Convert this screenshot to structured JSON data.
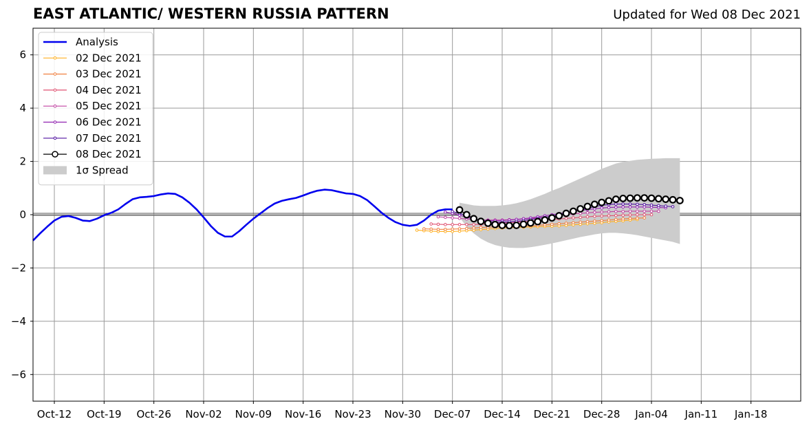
{
  "header": {
    "title": "EAST ATLANTIC/ WESTERN RUSSIA PATTERN",
    "updated": "Updated for Wed 08 Dec 2021"
  },
  "chart_data": {
    "type": "line",
    "title": "EAST ATLANTIC/ WESTERN RUSSIA PATTERN",
    "subtitle": "Updated for Wed 08 Dec 2021",
    "xlabel": "",
    "ylabel": "",
    "xlim": [
      -3,
      105
    ],
    "ylim": [
      -7,
      7
    ],
    "grid": true,
    "legend_position": "upper-left",
    "x_unit": "days since Oct-12 (2021)",
    "x_ticks": [
      {
        "x": 0,
        "label": "Oct-12"
      },
      {
        "x": 7,
        "label": "Oct-19"
      },
      {
        "x": 14,
        "label": "Oct-26"
      },
      {
        "x": 21,
        "label": "Nov-02"
      },
      {
        "x": 28,
        "label": "Nov-09"
      },
      {
        "x": 35,
        "label": "Nov-16"
      },
      {
        "x": 42,
        "label": "Nov-23"
      },
      {
        "x": 49,
        "label": "Nov-30"
      },
      {
        "x": 56,
        "label": "Dec-07"
      },
      {
        "x": 63,
        "label": "Dec-14"
      },
      {
        "x": 70,
        "label": "Dec-21"
      },
      {
        "x": 77,
        "label": "Dec-28"
      },
      {
        "x": 84,
        "label": "Jan-04"
      },
      {
        "x": 91,
        "label": "Jan-11"
      },
      {
        "x": 98,
        "label": "Jan-18"
      }
    ],
    "y_ticks": [
      {
        "y": 6,
        "label": "6"
      },
      {
        "y": 4,
        "label": "4"
      },
      {
        "y": 2,
        "label": "2"
      },
      {
        "y": 0,
        "label": "0"
      },
      {
        "y": -2,
        "label": "−2"
      },
      {
        "y": -4,
        "label": "−4"
      },
      {
        "y": -6,
        "label": "−6"
      }
    ],
    "analysis": {
      "name": "Analysis",
      "color": "#0000ee",
      "x": [
        -3,
        -2,
        -1,
        0,
        1,
        2,
        3,
        4,
        5,
        6,
        7,
        8,
        9,
        10,
        11,
        12,
        13,
        14,
        15,
        16,
        17,
        18,
        19,
        20,
        21,
        22,
        23,
        24,
        25,
        26,
        27,
        28,
        29,
        30,
        31,
        32,
        33,
        34,
        35,
        36,
        37,
        38,
        39,
        40,
        41,
        42,
        43,
        44,
        45,
        46,
        47,
        48,
        49,
        50,
        51,
        52,
        53,
        54,
        55,
        56
      ],
      "y": [
        -0.97,
        -0.7,
        -0.45,
        -0.22,
        -0.08,
        -0.05,
        -0.12,
        -0.22,
        -0.24,
        -0.15,
        -0.02,
        0.07,
        0.2,
        0.4,
        0.58,
        0.65,
        0.67,
        0.7,
        0.76,
        0.8,
        0.78,
        0.65,
        0.45,
        0.2,
        -0.1,
        -0.42,
        -0.68,
        -0.82,
        -0.82,
        -0.62,
        -0.38,
        -0.15,
        0.05,
        0.25,
        0.42,
        0.52,
        0.58,
        0.63,
        0.72,
        0.82,
        0.9,
        0.94,
        0.92,
        0.86,
        0.8,
        0.78,
        0.7,
        0.55,
        0.32,
        0.08,
        -0.12,
        -0.28,
        -0.38,
        -0.42,
        -0.38,
        -0.22,
        0,
        0.15,
        0.2,
        0.2
      ]
    },
    "spread": {
      "name": "1σ Spread",
      "color": "#cccccc",
      "x": [
        57,
        58,
        59,
        60,
        61,
        62,
        63,
        64,
        65,
        66,
        67,
        68,
        69,
        70,
        71,
        72,
        73,
        74,
        75,
        76,
        77,
        78,
        79,
        80,
        81,
        82,
        83,
        84,
        85,
        86,
        87,
        88
      ],
      "upper": [
        0.45,
        0.4,
        0.35,
        0.33,
        0.33,
        0.33,
        0.35,
        0.38,
        0.43,
        0.5,
        0.58,
        0.68,
        0.78,
        0.9,
        1.0,
        1.12,
        1.24,
        1.36,
        1.48,
        1.6,
        1.72,
        1.82,
        1.92,
        1.98,
        2.02,
        2.06,
        2.08,
        2.1,
        2.11,
        2.12,
        2.12,
        2.12
      ],
      "lower": [
        -0.1,
        -0.45,
        -0.7,
        -0.9,
        -1.04,
        -1.14,
        -1.2,
        -1.24,
        -1.25,
        -1.25,
        -1.22,
        -1.18,
        -1.13,
        -1.08,
        -1.02,
        -0.96,
        -0.9,
        -0.84,
        -0.79,
        -0.74,
        -0.7,
        -0.68,
        -0.68,
        -0.7,
        -0.73,
        -0.77,
        -0.82,
        -0.87,
        -0.92,
        -0.97,
        -1.02,
        -1.1
      ]
    },
    "series": [
      {
        "name": "02 Dec 2021",
        "color": "#ffb020",
        "x": [
          51,
          52,
          53,
          54,
          55,
          56,
          57,
          58,
          59,
          60,
          61,
          62,
          63,
          64,
          65,
          66,
          67,
          68,
          69,
          70,
          71,
          72,
          73,
          74,
          75,
          76,
          77,
          78,
          79,
          80,
          81,
          82
        ],
        "y": [
          -0.58,
          -0.6,
          -0.62,
          -0.63,
          -0.63,
          -0.63,
          -0.62,
          -0.6,
          -0.58,
          -0.56,
          -0.54,
          -0.52,
          -0.5,
          -0.49,
          -0.48,
          -0.47,
          -0.46,
          -0.45,
          -0.44,
          -0.43,
          -0.42,
          -0.4,
          -0.38,
          -0.36,
          -0.34,
          -0.32,
          -0.3,
          -0.27,
          -0.25,
          -0.23,
          -0.2,
          -0.18
        ]
      },
      {
        "name": "03 Dec 2021",
        "color": "#f08040",
        "x": [
          52,
          53,
          54,
          55,
          56,
          57,
          58,
          59,
          60,
          61,
          62,
          63,
          64,
          65,
          66,
          67,
          68,
          69,
          70,
          71,
          72,
          73,
          74,
          75,
          76,
          77,
          78,
          79,
          80,
          81,
          82,
          83
        ],
        "y": [
          -0.53,
          -0.54,
          -0.55,
          -0.55,
          -0.54,
          -0.53,
          -0.52,
          -0.5,
          -0.48,
          -0.47,
          -0.46,
          -0.45,
          -0.45,
          -0.44,
          -0.43,
          -0.42,
          -0.4,
          -0.38,
          -0.36,
          -0.34,
          -0.32,
          -0.3,
          -0.28,
          -0.26,
          -0.24,
          -0.22,
          -0.2,
          -0.18,
          -0.16,
          -0.14,
          -0.13,
          -0.12
        ]
      },
      {
        "name": "04 Dec 2021",
        "color": "#e05070",
        "x": [
          53,
          54,
          55,
          56,
          57,
          58,
          59,
          60,
          61,
          62,
          63,
          64,
          65,
          66,
          67,
          68,
          69,
          70,
          71,
          72,
          73,
          74,
          75,
          76,
          77,
          78,
          79,
          80,
          81,
          82,
          83,
          84
        ],
        "y": [
          -0.35,
          -0.36,
          -0.37,
          -0.37,
          -0.37,
          -0.37,
          -0.37,
          -0.36,
          -0.35,
          -0.33,
          -0.31,
          -0.3,
          -0.28,
          -0.26,
          -0.24,
          -0.22,
          -0.2,
          -0.18,
          -0.16,
          -0.14,
          -0.12,
          -0.1,
          -0.08,
          -0.06,
          -0.05,
          -0.04,
          -0.03,
          -0.02,
          -0.01,
          0,
          0,
          0
        ]
      },
      {
        "name": "05 Dec 2021",
        "color": "#c040a0",
        "x": [
          54,
          55,
          56,
          57,
          58,
          59,
          60,
          61,
          62,
          63,
          64,
          65,
          66,
          67,
          68,
          69,
          70,
          71,
          72,
          73,
          74,
          75,
          76,
          77,
          78,
          79,
          80,
          81,
          82,
          83,
          84,
          85
        ],
        "y": [
          -0.08,
          -0.1,
          -0.12,
          -0.14,
          -0.16,
          -0.18,
          -0.2,
          -0.2,
          -0.2,
          -0.2,
          -0.19,
          -0.18,
          -0.16,
          -0.14,
          -0.12,
          -0.09,
          -0.06,
          -0.03,
          0,
          0.03,
          0.05,
          0.07,
          0.09,
          0.1,
          0.11,
          0.12,
          0.12,
          0.13,
          0.13,
          0.13,
          0.13,
          0.13
        ]
      },
      {
        "name": "06 Dec 2021",
        "color": "#9020b0",
        "x": [
          55,
          56,
          57,
          58,
          59,
          60,
          61,
          62,
          63,
          64,
          65,
          66,
          67,
          68,
          69,
          70,
          71,
          72,
          73,
          74,
          75,
          76,
          77,
          78,
          79,
          80,
          81,
          82,
          83,
          84,
          85,
          86
        ],
        "y": [
          0.1,
          0.05,
          -0.02,
          -0.1,
          -0.16,
          -0.2,
          -0.22,
          -0.22,
          -0.22,
          -0.2,
          -0.18,
          -0.15,
          -0.12,
          -0.08,
          -0.04,
          0,
          0.04,
          0.08,
          0.12,
          0.16,
          0.19,
          0.22,
          0.25,
          0.27,
          0.28,
          0.29,
          0.29,
          0.29,
          0.29,
          0.28,
          0.27,
          0.26
        ]
      },
      {
        "name": "07 Dec 2021",
        "color": "#5010a0",
        "x": [
          56,
          57,
          58,
          59,
          60,
          61,
          62,
          63,
          64,
          65,
          66,
          67,
          68,
          69,
          70,
          71,
          72,
          73,
          74,
          75,
          76,
          77,
          78,
          79,
          80,
          81,
          82,
          83,
          84,
          85,
          86,
          87
        ],
        "y": [
          0.12,
          0.05,
          -0.05,
          -0.15,
          -0.22,
          -0.26,
          -0.28,
          -0.28,
          -0.27,
          -0.25,
          -0.22,
          -0.18,
          -0.14,
          -0.1,
          -0.05,
          0,
          0.06,
          0.12,
          0.18,
          0.24,
          0.3,
          0.35,
          0.38,
          0.4,
          0.4,
          0.4,
          0.39,
          0.38,
          0.36,
          0.34,
          0.32,
          0.3
        ]
      },
      {
        "name": "08 Dec 2021",
        "color": "#000000",
        "x": [
          57,
          58,
          59,
          60,
          61,
          62,
          63,
          64,
          65,
          66,
          67,
          68,
          69,
          70,
          71,
          72,
          73,
          74,
          75,
          76,
          77,
          78,
          79,
          80,
          81,
          82,
          83,
          84,
          85,
          86,
          87,
          88
        ],
        "y": [
          0.18,
          0,
          -0.15,
          -0.25,
          -0.32,
          -0.37,
          -0.4,
          -0.41,
          -0.4,
          -0.36,
          -0.31,
          -0.26,
          -0.2,
          -0.12,
          -0.04,
          0.05,
          0.13,
          0.22,
          0.31,
          0.39,
          0.46,
          0.52,
          0.58,
          0.61,
          0.62,
          0.63,
          0.63,
          0.62,
          0.6,
          0.58,
          0.56,
          0.53
        ]
      }
    ]
  }
}
